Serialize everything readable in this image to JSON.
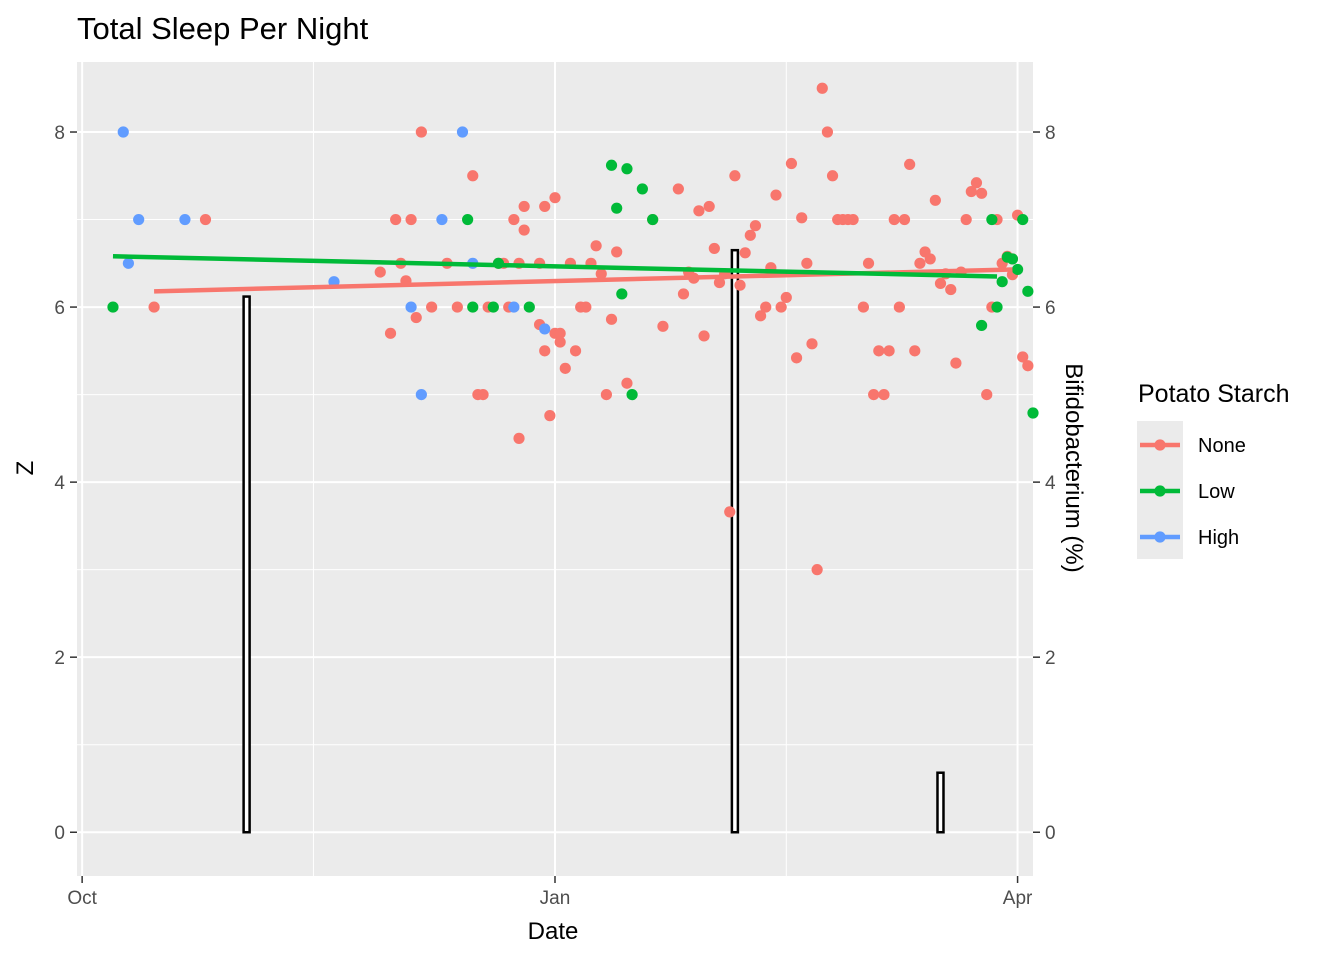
{
  "chart_data": {
    "type": "scatter",
    "title": "Total Sleep Per Night",
    "xlabel": "Date",
    "ylabel": "Z",
    "y2label": "Bifidobacterium (%)",
    "xlim": [
      "2016-09-30",
      "2017-04-04"
    ],
    "ylim": [
      -0.5,
      8.8
    ],
    "x_ticks": [
      {
        "date": "2016-10-01",
        "label": "Oct"
      },
      {
        "date": "2017-01-01",
        "label": "Jan"
      },
      {
        "date": "2017-04-01",
        "label": "Apr"
      }
    ],
    "x_minor_ticks": [
      "2016-11-15",
      "2017-02-15"
    ],
    "y_ticks": [
      0,
      2,
      4,
      6,
      8
    ],
    "y_minor_ticks": [
      1,
      3,
      5,
      7
    ],
    "y2_ticks": [
      0,
      2,
      4,
      6,
      8
    ],
    "grid": true,
    "legend": {
      "title": "Potato Starch",
      "position": "right"
    },
    "series": [
      {
        "name": "None",
        "color": "#F8766D",
        "points": [
          [
            "2016-10-15",
            6.0
          ],
          [
            "2016-10-25",
            7.0
          ],
          [
            "2016-11-28",
            6.4
          ],
          [
            "2016-11-30",
            5.7
          ],
          [
            "2016-12-01",
            7.0
          ],
          [
            "2016-12-02",
            6.5
          ],
          [
            "2016-12-03",
            6.3
          ],
          [
            "2016-12-04",
            7.0
          ],
          [
            "2016-12-05",
            5.88
          ],
          [
            "2016-12-06",
            8.0
          ],
          [
            "2016-12-08",
            6.0
          ],
          [
            "2016-12-13",
            6.0
          ],
          [
            "2016-12-11",
            6.5
          ],
          [
            "2016-12-16",
            7.5
          ],
          [
            "2016-12-17",
            5.0
          ],
          [
            "2016-12-18",
            5.0
          ],
          [
            "2016-12-19",
            6.0
          ],
          [
            "2016-12-21",
            6.5
          ],
          [
            "2016-12-22",
            6.5
          ],
          [
            "2016-12-23",
            6.0
          ],
          [
            "2016-12-25",
            6.5
          ],
          [
            "2016-12-26",
            7.15
          ],
          [
            "2016-12-29",
            6.5
          ],
          [
            "2016-12-30",
            7.15
          ],
          [
            "2017-01-01",
            5.7
          ],
          [
            "2017-01-02",
            5.7
          ],
          [
            "2016-12-24",
            7.0
          ],
          [
            "2016-12-26",
            6.88
          ],
          [
            "2016-12-25",
            4.5
          ],
          [
            "2016-12-29",
            5.8
          ],
          [
            "2016-12-30",
            5.5
          ],
          [
            "2016-12-31",
            4.76
          ],
          [
            "2017-01-01",
            7.25
          ],
          [
            "2017-01-02",
            5.6
          ],
          [
            "2017-01-03",
            5.3
          ],
          [
            "2017-01-04",
            6.5
          ],
          [
            "2017-01-05",
            5.5
          ],
          [
            "2017-01-06",
            6.0
          ],
          [
            "2017-01-07",
            6.0
          ],
          [
            "2017-01-08",
            6.5
          ],
          [
            "2017-01-09",
            6.7
          ],
          [
            "2017-01-10",
            6.38
          ],
          [
            "2017-01-11",
            5.0
          ],
          [
            "2017-01-12",
            5.86
          ],
          [
            "2017-01-13",
            6.63
          ],
          [
            "2017-01-15",
            5.13
          ],
          [
            "2017-01-20",
            7.0
          ],
          [
            "2017-01-22",
            5.78
          ],
          [
            "2017-01-25",
            7.35
          ],
          [
            "2017-01-26",
            6.15
          ],
          [
            "2017-01-27",
            6.4
          ],
          [
            "2017-01-28",
            6.33
          ],
          [
            "2017-01-29",
            7.1
          ],
          [
            "2017-01-30",
            5.67
          ],
          [
            "2017-01-31",
            7.15
          ],
          [
            "2017-02-01",
            6.67
          ],
          [
            "2017-02-02",
            6.28
          ],
          [
            "2017-02-03",
            6.38
          ],
          [
            "2017-02-04",
            3.66
          ],
          [
            "2017-02-05",
            7.5
          ],
          [
            "2017-02-06",
            6.25
          ],
          [
            "2017-02-07",
            6.62
          ],
          [
            "2017-02-08",
            6.82
          ],
          [
            "2017-02-09",
            6.93
          ],
          [
            "2017-02-10",
            5.9
          ],
          [
            "2017-02-11",
            6.0
          ],
          [
            "2017-02-12",
            6.45
          ],
          [
            "2017-02-13",
            7.28
          ],
          [
            "2017-02-14",
            6.0
          ],
          [
            "2017-02-15",
            6.11
          ],
          [
            "2017-02-16",
            7.64
          ],
          [
            "2017-02-17",
            5.42
          ],
          [
            "2017-02-18",
            7.02
          ],
          [
            "2017-02-19",
            6.5
          ],
          [
            "2017-02-20",
            5.58
          ],
          [
            "2017-02-21",
            3.0
          ],
          [
            "2017-02-22",
            8.5
          ],
          [
            "2017-02-23",
            8.0
          ],
          [
            "2017-02-24",
            7.5
          ],
          [
            "2017-02-25",
            7.0
          ],
          [
            "2017-02-26",
            7.0
          ],
          [
            "2017-02-27",
            7.0
          ],
          [
            "2017-02-28",
            7.0
          ],
          [
            "2017-03-02",
            6.0
          ],
          [
            "2017-03-03",
            6.5
          ],
          [
            "2017-03-04",
            5.0
          ],
          [
            "2017-03-05",
            5.5
          ],
          [
            "2017-03-06",
            5.0
          ],
          [
            "2017-03-07",
            5.5
          ],
          [
            "2017-03-08",
            7.0
          ],
          [
            "2017-03-09",
            6.0
          ],
          [
            "2017-03-10",
            7.0
          ],
          [
            "2017-03-11",
            7.63
          ],
          [
            "2017-03-12",
            5.5
          ],
          [
            "2017-03-13",
            6.5
          ],
          [
            "2017-03-14",
            6.63
          ],
          [
            "2017-03-15",
            6.55
          ],
          [
            "2017-03-16",
            7.22
          ],
          [
            "2017-03-17",
            6.27
          ],
          [
            "2017-03-18",
            6.38
          ],
          [
            "2017-03-19",
            6.2
          ],
          [
            "2017-03-20",
            5.36
          ],
          [
            "2017-03-21",
            6.4
          ],
          [
            "2017-03-22",
            7.0
          ],
          [
            "2017-03-23",
            7.32
          ],
          [
            "2017-03-24",
            7.42
          ],
          [
            "2017-03-25",
            7.3
          ],
          [
            "2017-03-26",
            5.0
          ],
          [
            "2017-03-27",
            6.0
          ],
          [
            "2017-03-28",
            7.0
          ],
          [
            "2017-03-29",
            6.5
          ],
          [
            "2017-03-31",
            6.55
          ],
          [
            "2017-04-02",
            5.43
          ],
          [
            "2017-04-03",
            5.33
          ],
          [
            "2017-03-30",
            6.58
          ],
          [
            "2017-04-01",
            7.05
          ],
          [
            "2017-03-31",
            6.37
          ]
        ]
      },
      {
        "name": "Low",
        "color": "#00BA38",
        "points": [
          [
            "2016-10-07",
            6.0
          ],
          [
            "2016-12-15",
            7.0
          ],
          [
            "2016-12-16",
            6.0
          ],
          [
            "2016-12-20",
            6.0
          ],
          [
            "2016-12-21",
            6.5
          ],
          [
            "2016-12-27",
            6.0
          ],
          [
            "2017-01-12",
            7.62
          ],
          [
            "2017-01-13",
            7.13
          ],
          [
            "2017-01-14",
            6.15
          ],
          [
            "2017-01-15",
            7.58
          ],
          [
            "2017-01-16",
            5.0
          ],
          [
            "2017-01-18",
            7.35
          ],
          [
            "2017-01-20",
            7.0
          ],
          [
            "2017-03-27",
            7.0
          ],
          [
            "2017-03-25",
            5.79
          ],
          [
            "2017-03-29",
            6.29
          ],
          [
            "2017-03-31",
            6.55
          ],
          [
            "2017-04-01",
            6.43
          ],
          [
            "2017-04-02",
            7.0
          ],
          [
            "2017-04-03",
            6.18
          ],
          [
            "2017-04-04",
            4.79
          ],
          [
            "2017-03-30",
            6.57
          ],
          [
            "2017-03-28",
            6.0
          ]
        ]
      },
      {
        "name": "High",
        "color": "#619CFF",
        "points": [
          [
            "2016-10-09",
            8.0
          ],
          [
            "2016-10-10",
            6.5
          ],
          [
            "2016-10-12",
            7.0
          ],
          [
            "2016-10-21",
            7.0
          ],
          [
            "2016-11-19",
            6.29
          ],
          [
            "2016-12-04",
            6.0
          ],
          [
            "2016-12-06",
            5.0
          ],
          [
            "2016-12-10",
            7.0
          ],
          [
            "2016-12-14",
            8.0
          ],
          [
            "2016-12-16",
            6.5
          ],
          [
            "2016-12-24",
            6.0
          ],
          [
            "2016-12-30",
            5.75
          ]
        ]
      }
    ],
    "trend_lines": [
      {
        "name": "None",
        "color": "#F8766D",
        "from": [
          "2016-10-15",
          6.18
        ],
        "to": [
          "2017-03-31",
          6.43
        ]
      },
      {
        "name": "Low",
        "color": "#00BA38",
        "from": [
          "2016-10-07",
          6.58
        ],
        "to": [
          "2017-03-28",
          6.35
        ]
      }
    ],
    "bars": [
      {
        "name": "Bifidobacterium (%)",
        "date": "2016-11-02",
        "value": 6.12
      },
      {
        "name": "Bifidobacterium (%)",
        "date": "2017-02-05",
        "value": 6.65
      },
      {
        "name": "Bifidobacterium (%)",
        "date": "2017-03-17",
        "value": 0.68
      }
    ]
  }
}
